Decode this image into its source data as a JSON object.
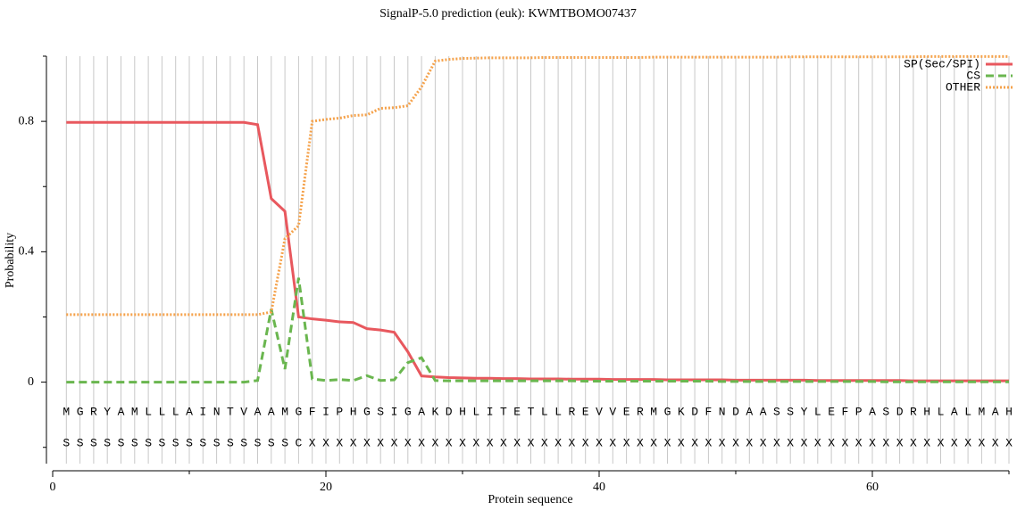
{
  "chart_data": {
    "type": "line",
    "title": "SignalP-5.0 prediction (euk):  KWMTBOMO07437",
    "x_label": "Protein sequence",
    "y_label": "Probability",
    "x": [
      1,
      2,
      3,
      4,
      5,
      6,
      7,
      8,
      9,
      10,
      11,
      12,
      13,
      14,
      15,
      16,
      17,
      18,
      19,
      20,
      21,
      22,
      23,
      24,
      25,
      26,
      27,
      28,
      29,
      30,
      31,
      32,
      33,
      34,
      35,
      36,
      37,
      38,
      39,
      40,
      41,
      42,
      43,
      44,
      45,
      46,
      47,
      48,
      49,
      50,
      51,
      52,
      53,
      54,
      55,
      56,
      57,
      58,
      59,
      60,
      61,
      62,
      63,
      64,
      65,
      66,
      67,
      68,
      69,
      70
    ],
    "sequence": [
      "M",
      "G",
      "R",
      "Y",
      "A",
      "M",
      "L",
      "L",
      "L",
      "A",
      "I",
      "N",
      "T",
      "V",
      "A",
      "A",
      "M",
      "G",
      "F",
      "I",
      "P",
      "H",
      "G",
      "S",
      "I",
      "G",
      "A",
      "K",
      "D",
      "H",
      "L",
      "I",
      "T",
      "E",
      "T",
      "L",
      "L",
      "R",
      "E",
      "V",
      "V",
      "E",
      "R",
      "M",
      "G",
      "K",
      "D",
      "F",
      "N",
      "D",
      "A",
      "A",
      "S",
      "S",
      "Y",
      "L",
      "E",
      "F",
      "P",
      "A",
      "S",
      "D",
      "R",
      "H",
      "L",
      "A",
      "L",
      "M",
      "A",
      "H"
    ],
    "labels": [
      "S",
      "S",
      "S",
      "S",
      "S",
      "S",
      "S",
      "S",
      "S",
      "S",
      "S",
      "S",
      "S",
      "S",
      "S",
      "S",
      "S",
      "C",
      "X",
      "X",
      "X",
      "X",
      "X",
      "X",
      "X",
      "X",
      "X",
      "X",
      "X",
      "X",
      "X",
      "X",
      "X",
      "X",
      "X",
      "X",
      "X",
      "X",
      "X",
      "X",
      "X",
      "X",
      "X",
      "X",
      "X",
      "X",
      "X",
      "X",
      "X",
      "X",
      "X",
      "X",
      "X",
      "X",
      "X",
      "X",
      "X",
      "X",
      "X",
      "X",
      "X",
      "X",
      "X",
      "X",
      "X",
      "X",
      "X",
      "X",
      "X",
      "X"
    ],
    "series": [
      {
        "name": "SP(Sec/SPI)",
        "color": "#e8585e",
        "linestyle": "solid",
        "values": [
          0.797,
          0.797,
          0.797,
          0.797,
          0.797,
          0.797,
          0.797,
          0.797,
          0.797,
          0.797,
          0.797,
          0.797,
          0.797,
          0.797,
          0.79,
          0.563,
          0.524,
          0.2,
          0.194,
          0.19,
          0.185,
          0.183,
          0.164,
          0.16,
          0.153,
          0.093,
          0.019,
          0.016,
          0.014,
          0.013,
          0.012,
          0.012,
          0.011,
          0.011,
          0.01,
          0.01,
          0.01,
          0.009,
          0.009,
          0.009,
          0.008,
          0.008,
          0.008,
          0.008,
          0.007,
          0.007,
          0.007,
          0.007,
          0.007,
          0.006,
          0.006,
          0.006,
          0.006,
          0.006,
          0.006,
          0.005,
          0.005,
          0.005,
          0.005,
          0.005,
          0.005,
          0.005,
          0.004,
          0.004,
          0.004,
          0.004,
          0.004,
          0.004,
          0.004,
          0.004
        ]
      },
      {
        "name": "CS",
        "color": "#6ab64f",
        "linestyle": "dashed",
        "values": [
          0,
          0,
          0,
          0,
          0,
          0,
          0,
          0,
          0,
          0,
          0,
          0,
          0,
          0,
          0.005,
          0.224,
          0.04,
          0.32,
          0.01,
          0.005,
          0.008,
          0.005,
          0.02,
          0.005,
          0.007,
          0.06,
          0.075,
          0.005,
          0.004,
          0.004,
          0.004,
          0.004,
          0.004,
          0.004,
          0.004,
          0.004,
          0.004,
          0.004,
          0.003,
          0.003,
          0.003,
          0.003,
          0.003,
          0.003,
          0.003,
          0.003,
          0.003,
          0.003,
          0.002,
          0.002,
          0.002,
          0.002,
          0.002,
          0.002,
          0.002,
          0.002,
          0.002,
          0.002,
          0.002,
          0.002,
          0.001,
          0.001,
          0.001,
          0.001,
          0.001,
          0.001,
          0.001,
          0.001,
          0.001,
          0.001
        ]
      },
      {
        "name": "OTHER",
        "color": "#f5a24b",
        "linestyle": "dotted",
        "values": [
          0.207,
          0.207,
          0.207,
          0.207,
          0.207,
          0.207,
          0.207,
          0.207,
          0.207,
          0.207,
          0.207,
          0.207,
          0.207,
          0.207,
          0.207,
          0.215,
          0.44,
          0.48,
          0.8,
          0.806,
          0.81,
          0.818,
          0.82,
          0.84,
          0.842,
          0.848,
          0.906,
          0.985,
          0.99,
          0.993,
          0.994,
          0.995,
          0.995,
          0.995,
          0.995,
          0.996,
          0.996,
          0.996,
          0.996,
          0.996,
          0.996,
          0.996,
          0.996,
          0.997,
          0.997,
          0.997,
          0.997,
          0.997,
          0.997,
          0.997,
          0.997,
          0.997,
          0.997,
          0.998,
          0.998,
          0.998,
          0.998,
          0.998,
          0.998,
          0.998,
          0.998,
          0.998,
          0.998,
          0.999,
          0.999,
          0.999,
          0.999,
          0.999,
          0.999,
          0.999
        ]
      }
    ],
    "xlim": [
      0,
      70
    ],
    "xticks": [
      0,
      20,
      40,
      60
    ],
    "x_minor_ticks": [
      10,
      30,
      50,
      70
    ],
    "ylim": [
      -0.25,
      1.0
    ],
    "yticks": [
      0,
      0.4,
      0.8
    ],
    "y_minor_ticks": [
      -0.2,
      0.2,
      0.6,
      1.0
    ],
    "grid": "x",
    "legend": "upper right"
  }
}
